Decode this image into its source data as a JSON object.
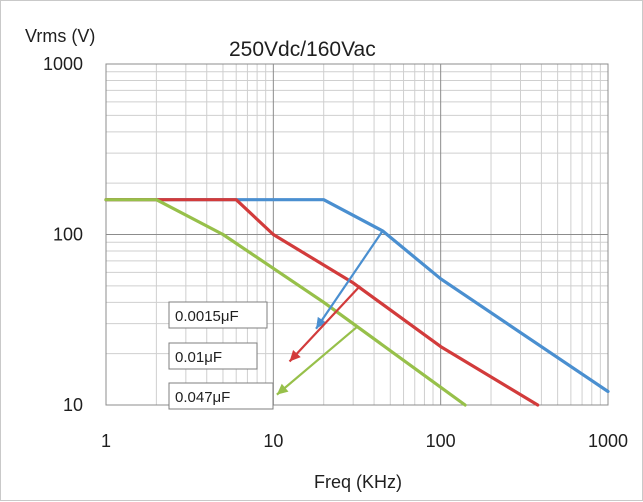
{
  "chart_data": {
    "type": "line",
    "title": "250Vdc/160Vac",
    "xlabel": "Freq (KHz)",
    "ylabel": "Vrms (V)",
    "x_scale": "log",
    "y_scale": "log",
    "xlim": [
      1,
      1000
    ],
    "ylim": [
      10,
      1000
    ],
    "x_ticks": [
      "1",
      "10",
      "100",
      "1000"
    ],
    "y_ticks": [
      "10",
      "100",
      "1000"
    ],
    "grid": true,
    "series": [
      {
        "name": "0.0015μF",
        "color": "#4a8fd0",
        "x": [
          1,
          20,
          45,
          100,
          1000
        ],
        "y": [
          160,
          160,
          105,
          55,
          12
        ],
        "annotation_label": "0.0015μF",
        "arrow_from": [
          45,
          105
        ],
        "arrow_to": [
          18,
          28
        ]
      },
      {
        "name": "0.01μF",
        "color": "#d23b3b",
        "x": [
          1,
          6,
          10,
          30,
          100,
          380
        ],
        "y": [
          160,
          160,
          100,
          52,
          22,
          9.5
        ],
        "annotation_label": "0.01μF",
        "arrow_from": [
          33,
          50
        ],
        "arrow_to": [
          12.5,
          18
        ]
      },
      {
        "name": "0.047μF",
        "color": "#97c04a",
        "x": [
          1,
          2,
          5,
          20,
          140
        ],
        "y": [
          160,
          160,
          100,
          40,
          9.5
        ],
        "annotation_label": "0.047μF",
        "arrow_from": [
          32,
          29
        ],
        "arrow_to": [
          10.5,
          11.5
        ]
      }
    ]
  }
}
